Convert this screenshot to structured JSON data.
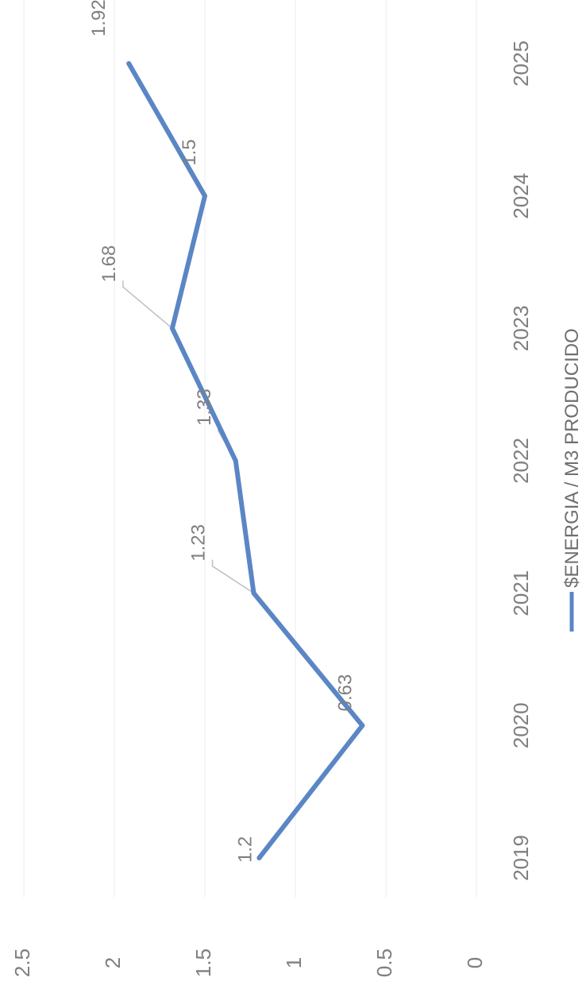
{
  "chart_data": {
    "type": "line",
    "categories": [
      "2019",
      "2020",
      "2021",
      "2022",
      "2023",
      "2024",
      "2025"
    ],
    "series": [
      {
        "name": "$ENERGIA / M3 PRODUCIDO",
        "values": [
          1.2,
          0.63,
          1.23,
          1.33,
          1.68,
          1.5,
          1.92
        ],
        "labels": [
          "1.2",
          "0.63",
          "1.23",
          "1.33",
          "1.68",
          "1.5",
          "1.92"
        ],
        "color": "#5b86c5"
      }
    ],
    "ylim": [
      0,
      2.5
    ],
    "y_ticks": [
      "0",
      "0.5",
      "1",
      "1.5",
      "2",
      "2.5"
    ],
    "orientation": "rotated 90° counter-clockwise",
    "legend_position": "bottom",
    "grid": true
  }
}
